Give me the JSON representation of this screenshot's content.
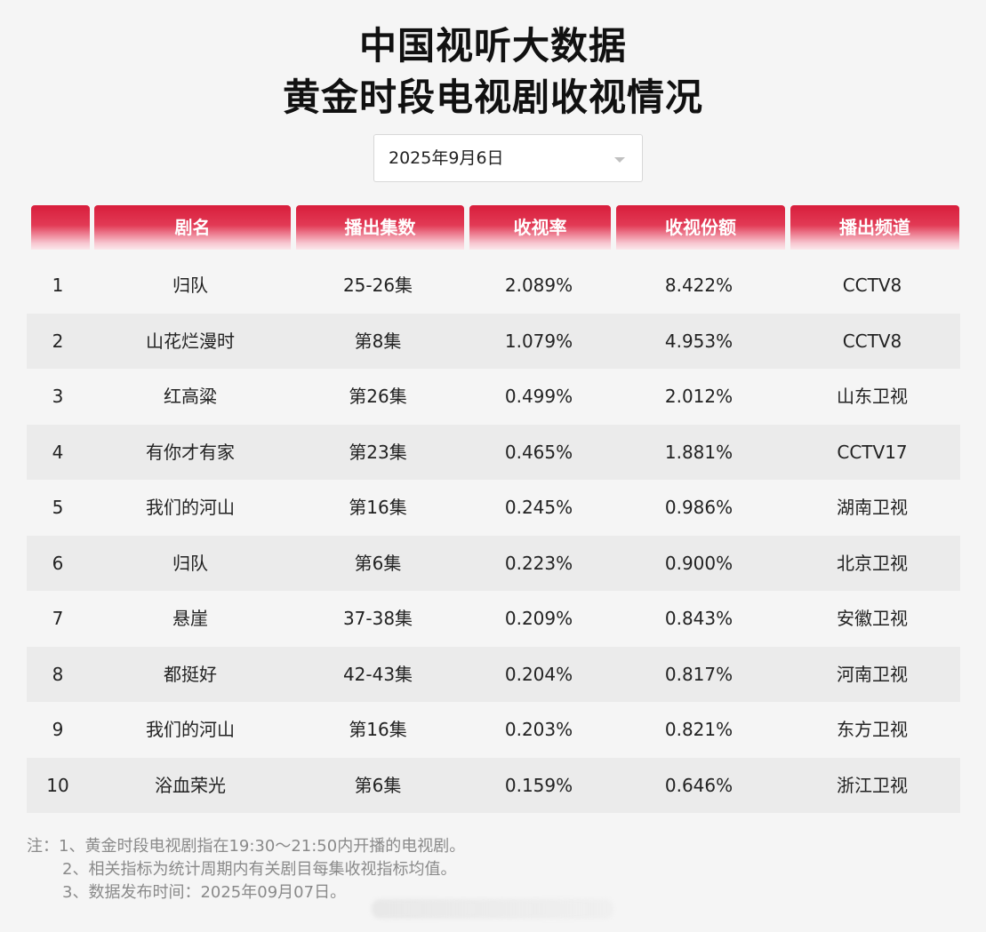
{
  "title": {
    "line1": "中国视听大数据",
    "line2": "黄金时段电视剧收视情况"
  },
  "date_select": {
    "value": "2025年9月6日",
    "icon": "chevron-down-icon"
  },
  "table": {
    "headers": [
      "",
      "剧名",
      "播出集数",
      "收视率",
      "收视份额",
      "播出频道"
    ],
    "rows": [
      [
        "1",
        "归队",
        "25-26集",
        "2.089%",
        "8.422%",
        "CCTV8"
      ],
      [
        "2",
        "山花烂漫时",
        "第8集",
        "1.079%",
        "4.953%",
        "CCTV8"
      ],
      [
        "3",
        "红高粱",
        "第26集",
        "0.499%",
        "2.012%",
        "山东卫视"
      ],
      [
        "4",
        "有你才有家",
        "第23集",
        "0.465%",
        "1.881%",
        "CCTV17"
      ],
      [
        "5",
        "我们的河山",
        "第16集",
        "0.245%",
        "0.986%",
        "湖南卫视"
      ],
      [
        "6",
        "归队",
        "第6集",
        "0.223%",
        "0.900%",
        "北京卫视"
      ],
      [
        "7",
        "悬崖",
        "37-38集",
        "0.209%",
        "0.843%",
        "安徽卫视"
      ],
      [
        "8",
        "都挺好",
        "42-43集",
        "0.204%",
        "0.817%",
        "河南卫视"
      ],
      [
        "9",
        "我们的河山",
        "第16集",
        "0.203%",
        "0.821%",
        "东方卫视"
      ],
      [
        "10",
        "浴血荣光",
        "第6集",
        "0.159%",
        "0.646%",
        "浙江卫视"
      ]
    ]
  },
  "notes": [
    "注：1、黄金时段电视剧指在19:30～21:50内开播的电视剧。",
    "2、相关指标为统计周期内有关剧目每集收视指标均值。",
    "3、数据发布时间：2025年09月07日。"
  ],
  "colors": {
    "header_red": "#d81e3c",
    "alt_row": "#ebebeb",
    "background": "#f5f5f5",
    "note_text": "#8a8a8a"
  }
}
